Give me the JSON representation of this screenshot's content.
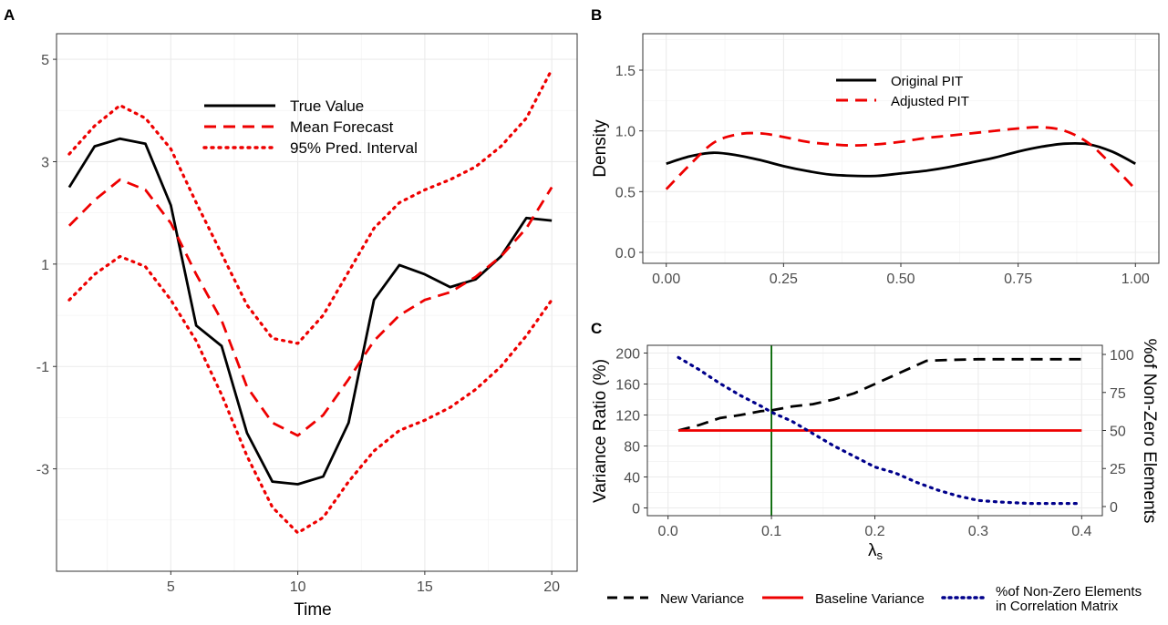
{
  "chart_data": [
    {
      "panel": "A",
      "type": "line",
      "title": "",
      "xlabel": "Time",
      "ylabel": "",
      "xlim": [
        0.5,
        21
      ],
      "ylim": [
        -5,
        5.5
      ],
      "x_ticks": [
        "5",
        "10",
        "15",
        "20"
      ],
      "y_ticks": [
        "5",
        "3",
        "1",
        "-1",
        "-3"
      ],
      "grid": true,
      "legend_position": "top-right",
      "legend": [
        "True Value",
        "Mean Forecast",
        "95% Pred. Interval"
      ],
      "x": [
        1,
        2,
        3,
        4,
        5,
        6,
        7,
        8,
        9,
        10,
        11,
        12,
        13,
        14,
        15,
        16,
        17,
        18,
        19,
        20
      ],
      "series": [
        {
          "name": "True Value",
          "color": "#000000",
          "dash": "solid",
          "values": [
            2.5,
            3.3,
            3.45,
            3.35,
            2.15,
            -0.2,
            -0.6,
            -2.3,
            -3.25,
            -3.3,
            -3.15,
            -2.1,
            0.3,
            0.98,
            0.8,
            0.55,
            0.7,
            1.15,
            1.9,
            1.85
          ]
        },
        {
          "name": "Mean Forecast",
          "color": "#ee0000",
          "dash": "dashed",
          "values": [
            1.75,
            2.25,
            2.65,
            2.45,
            1.8,
            0.8,
            -0.1,
            -1.4,
            -2.1,
            -2.35,
            -1.95,
            -1.25,
            -0.5,
            0.0,
            0.3,
            0.45,
            0.75,
            1.15,
            1.7,
            2.5
          ]
        },
        {
          "name": "95% Pred. Interval (upper)",
          "color": "#ee0000",
          "dash": "dotted",
          "values": [
            3.15,
            3.7,
            4.1,
            3.85,
            3.25,
            2.2,
            1.2,
            0.2,
            -0.45,
            -0.55,
            0.0,
            0.85,
            1.7,
            2.2,
            2.45,
            2.65,
            2.9,
            3.3,
            3.85,
            4.8
          ]
        },
        {
          "name": "95% Pred. Interval (lower)",
          "color": "#ee0000",
          "dash": "dotted",
          "values": [
            0.3,
            0.8,
            1.15,
            0.95,
            0.3,
            -0.5,
            -1.55,
            -2.75,
            -3.75,
            -4.25,
            -3.95,
            -3.25,
            -2.65,
            -2.25,
            -2.05,
            -1.8,
            -1.45,
            -1.0,
            -0.4,
            0.3
          ]
        }
      ]
    },
    {
      "panel": "B",
      "type": "line",
      "title": "",
      "xlabel": "",
      "ylabel": "Density",
      "xlim": [
        -0.05,
        1.05
      ],
      "ylim": [
        -0.09,
        1.8
      ],
      "x_ticks": [
        "0.00",
        "0.25",
        "0.50",
        "0.75",
        "1.00"
      ],
      "y_ticks": [
        "0.0",
        "0.5",
        "1.0",
        "1.5"
      ],
      "grid": true,
      "legend_position": "top-center",
      "legend": [
        "Original PIT",
        "Adjusted PIT"
      ],
      "x": [
        0.0,
        0.05,
        0.1,
        0.15,
        0.2,
        0.25,
        0.3,
        0.35,
        0.4,
        0.45,
        0.5,
        0.55,
        0.6,
        0.65,
        0.7,
        0.75,
        0.8,
        0.85,
        0.9,
        0.95,
        1.0
      ],
      "series": [
        {
          "name": "Original PIT",
          "color": "#000000",
          "dash": "solid",
          "values": [
            0.73,
            0.79,
            0.82,
            0.8,
            0.76,
            0.71,
            0.67,
            0.64,
            0.63,
            0.63,
            0.65,
            0.67,
            0.7,
            0.74,
            0.78,
            0.83,
            0.87,
            0.895,
            0.89,
            0.83,
            0.73
          ]
        },
        {
          "name": "Adjusted PIT",
          "color": "#ee0000",
          "dash": "dashed",
          "values": [
            0.52,
            0.72,
            0.9,
            0.97,
            0.98,
            0.95,
            0.91,
            0.89,
            0.88,
            0.89,
            0.91,
            0.94,
            0.96,
            0.98,
            1.0,
            1.02,
            1.03,
            1.0,
            0.9,
            0.72,
            0.52
          ]
        }
      ]
    },
    {
      "panel": "C",
      "type": "line",
      "title": "",
      "xlabel": "λs",
      "ylabel": "Variance Ratio (%)",
      "ylabel_right": "%of Non-Zero Elements",
      "xlim": [
        -0.02,
        0.42
      ],
      "ylim": [
        -10,
        210
      ],
      "ylim_right": [
        -6,
        106
      ],
      "x_ticks": [
        "0.0",
        "0.1",
        "0.2",
        "0.3",
        "0.4"
      ],
      "y_ticks": [
        "200",
        "160",
        "120",
        "80",
        "40",
        "0"
      ],
      "y_ticks_right": [
        "100",
        "75",
        "50",
        "25",
        "0"
      ],
      "grid": true,
      "legend_position": "bottom",
      "legend": [
        "New Variance",
        "Baseline Variance",
        "%of Non-Zero Elements in Correlation Matrix"
      ],
      "vline": {
        "x": 0.1,
        "color": "#006400"
      },
      "series": [
        {
          "name": "New Variance",
          "color": "#000000",
          "dash": "dashed",
          "axis": "left",
          "x": [
            0.01,
            0.03,
            0.05,
            0.07,
            0.09,
            0.1,
            0.12,
            0.14,
            0.16,
            0.18,
            0.2,
            0.22,
            0.24,
            0.25,
            0.27,
            0.3,
            0.35,
            0.4
          ],
          "values": [
            100,
            107,
            116,
            120,
            125,
            126,
            131,
            134,
            140,
            148,
            160,
            172,
            184,
            190,
            191,
            192,
            192,
            192
          ]
        },
        {
          "name": "Baseline Variance",
          "color": "#ee0000",
          "dash": "solid",
          "axis": "left",
          "x": [
            0.01,
            0.4
          ],
          "values": [
            100,
            100
          ]
        },
        {
          "name": "%of Non-Zero Elements in Correlation Matrix",
          "color": "#00008b",
          "dash": "dotted",
          "axis": "right",
          "x": [
            0.01,
            0.03,
            0.05,
            0.07,
            0.09,
            0.1,
            0.12,
            0.14,
            0.16,
            0.18,
            0.2,
            0.22,
            0.24,
            0.26,
            0.28,
            0.3,
            0.32,
            0.35,
            0.4
          ],
          "values": [
            98,
            90,
            81,
            73,
            66,
            62,
            56,
            48,
            40,
            33,
            26,
            22,
            16,
            11,
            7,
            4,
            3,
            2,
            2
          ]
        }
      ]
    }
  ],
  "panels": {
    "a": {
      "letter": "A"
    },
    "b": {
      "letter": "B"
    },
    "c": {
      "letter": "C"
    }
  },
  "legend_c": {
    "new_variance": "New Variance",
    "baseline_variance": "Baseline Variance",
    "nonzero_line1": "%of Non-Zero Elements",
    "nonzero_line2": "in Correlation Matrix"
  }
}
